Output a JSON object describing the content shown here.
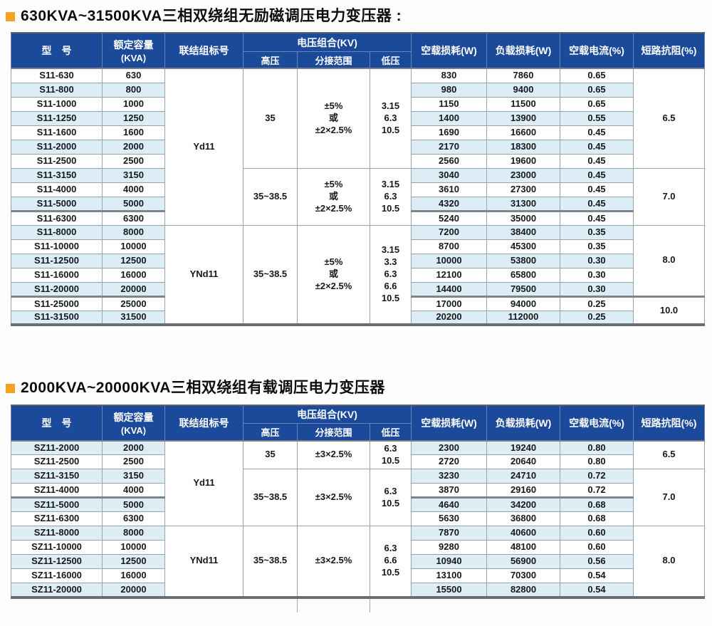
{
  "colors": {
    "header_bg": "#1b4a9b",
    "alt_row_bg": "#dcedf6",
    "bullet_accent": "#f5a21e",
    "grid_border": "#99a2aa",
    "thick_border": "#7d868d"
  },
  "headers": {
    "model": "型　号",
    "capacity_l1": "额定容量",
    "capacity_l2": "(KVA)",
    "connection": "联结组标号",
    "voltage_combo": "电压组合(KV)",
    "hv": "高压",
    "tap": "分接范围",
    "lv": "低压",
    "noload_loss": "空载损耗(W)",
    "load_loss": "负载损耗(W)",
    "noload_current": "空载电流(%)",
    "impedance": "短路抗阻(%)"
  },
  "sections": [
    {
      "title": "630KVA~31500KVA三相双绕组无励磁调压电力变压器 :",
      "table": {
        "shade_offset": 1,
        "thick_above": [
          10,
          16
        ],
        "rows": [
          {
            "model": "S11-630",
            "kva": "630",
            "no_load_loss": "830",
            "load_loss": "7860",
            "no_load_current": "0.65"
          },
          {
            "model": "S11-800",
            "kva": "800",
            "no_load_loss": "980",
            "load_loss": "9400",
            "no_load_current": "0.65"
          },
          {
            "model": "S11-1000",
            "kva": "1000",
            "no_load_loss": "1150",
            "load_loss": "11500",
            "no_load_current": "0.65"
          },
          {
            "model": "S11-1250",
            "kva": "1250",
            "no_load_loss": "1400",
            "load_loss": "13900",
            "no_load_current": "0.55"
          },
          {
            "model": "S11-1600",
            "kva": "1600",
            "no_load_loss": "1690",
            "load_loss": "16600",
            "no_load_current": "0.45"
          },
          {
            "model": "S11-2000",
            "kva": "2000",
            "no_load_loss": "2170",
            "load_loss": "18300",
            "no_load_current": "0.45"
          },
          {
            "model": "S11-2500",
            "kva": "2500",
            "no_load_loss": "2560",
            "load_loss": "19600",
            "no_load_current": "0.45"
          },
          {
            "model": "S11-3150",
            "kva": "3150",
            "no_load_loss": "3040",
            "load_loss": "23000",
            "no_load_current": "0.45"
          },
          {
            "model": "S11-4000",
            "kva": "4000",
            "no_load_loss": "3610",
            "load_loss": "27300",
            "no_load_current": "0.45"
          },
          {
            "model": "S11-5000",
            "kva": "5000",
            "no_load_loss": "4320",
            "load_loss": "31300",
            "no_load_current": "0.45"
          },
          {
            "model": "S11-6300",
            "kva": "6300",
            "no_load_loss": "5240",
            "load_loss": "35000",
            "no_load_current": "0.45"
          },
          {
            "model": "S11-8000",
            "kva": "8000",
            "no_load_loss": "7200",
            "load_loss": "38400",
            "no_load_current": "0.35"
          },
          {
            "model": "S11-10000",
            "kva": "10000",
            "no_load_loss": "8700",
            "load_loss": "45300",
            "no_load_current": "0.35"
          },
          {
            "model": "S11-12500",
            "kva": "12500",
            "no_load_loss": "10000",
            "load_loss": "53800",
            "no_load_current": "0.30"
          },
          {
            "model": "S11-16000",
            "kva": "16000",
            "no_load_loss": "12100",
            "load_loss": "65800",
            "no_load_current": "0.30"
          },
          {
            "model": "S11-20000",
            "kva": "20000",
            "no_load_loss": "14400",
            "load_loss": "79500",
            "no_load_current": "0.30"
          },
          {
            "model": "S11-25000",
            "kva": "25000",
            "no_load_loss": "17000",
            "load_loss": "94000",
            "no_load_current": "0.25"
          },
          {
            "model": "S11-31500",
            "kva": "31500",
            "no_load_loss": "20200",
            "load_loss": "112000",
            "no_load_current": "0.25"
          }
        ],
        "merged": {
          "connection": [
            {
              "at": 0,
              "span": 11,
              "lines": [
                "Yd11"
              ]
            },
            {
              "at": 11,
              "span": 7,
              "lines": [
                "YNd11"
              ]
            }
          ],
          "hv": [
            {
              "at": 0,
              "span": 7,
              "lines": [
                "35"
              ]
            },
            {
              "at": 7,
              "span": 4,
              "lines": [
                "35~38.5"
              ]
            },
            {
              "at": 11,
              "span": 7,
              "lines": [
                "35~38.5"
              ]
            }
          ],
          "tap": [
            {
              "at": 0,
              "span": 7,
              "lines": [
                "±5%",
                "或",
                "±2×2.5%"
              ]
            },
            {
              "at": 7,
              "span": 4,
              "lines": [
                "±5%",
                "或",
                "±2×2.5%"
              ]
            },
            {
              "at": 11,
              "span": 7,
              "lines": [
                "±5%",
                "或",
                "±2×2.5%"
              ]
            }
          ],
          "lv": [
            {
              "at": 0,
              "span": 7,
              "lines": [
                "3.15",
                "6.3",
                "10.5"
              ]
            },
            {
              "at": 7,
              "span": 4,
              "lines": [
                "3.15",
                "6.3",
                "10.5"
              ]
            },
            {
              "at": 11,
              "span": 7,
              "lines": [
                "3.15",
                "3.3",
                "6.3",
                "6.6",
                "10.5"
              ]
            }
          ],
          "impedance": [
            {
              "at": 0,
              "span": 7,
              "lines": [
                "6.5"
              ]
            },
            {
              "at": 7,
              "span": 4,
              "lines": [
                "7.0"
              ]
            },
            {
              "at": 11,
              "span": 5,
              "lines": [
                "8.0"
              ]
            },
            {
              "at": 16,
              "span": 2,
              "lines": [
                "10.0"
              ]
            }
          ]
        }
      }
    },
    {
      "title": "2000KVA~20000KVA三相双绕组有载调压电力变压器",
      "table": {
        "shade_offset": 0,
        "thick_above": [
          4
        ],
        "rows": [
          {
            "model": "SZ11-2000",
            "kva": "2000",
            "no_load_loss": "2300",
            "load_loss": "19240",
            "no_load_current": "0.80"
          },
          {
            "model": "SZ11-2500",
            "kva": "2500",
            "no_load_loss": "2720",
            "load_loss": "20640",
            "no_load_current": "0.80"
          },
          {
            "model": "SZ11-3150",
            "kva": "3150",
            "no_load_loss": "3230",
            "load_loss": "24710",
            "no_load_current": "0.72"
          },
          {
            "model": "SZ11-4000",
            "kva": "4000",
            "no_load_loss": "3870",
            "load_loss": "29160",
            "no_load_current": "0.72"
          },
          {
            "model": "SZ11-5000",
            "kva": "5000",
            "no_load_loss": "4640",
            "load_loss": "34200",
            "no_load_current": "0.68"
          },
          {
            "model": "SZ11-6300",
            "kva": "6300",
            "no_load_loss": "5630",
            "load_loss": "36800",
            "no_load_current": "0.68"
          },
          {
            "model": "SZ11-8000",
            "kva": "8000",
            "no_load_loss": "7870",
            "load_loss": "40600",
            "no_load_current": "0.60"
          },
          {
            "model": "SZ11-10000",
            "kva": "10000",
            "no_load_loss": "9280",
            "load_loss": "48100",
            "no_load_current": "0.60"
          },
          {
            "model": "SZ11-12500",
            "kva": "12500",
            "no_load_loss": "10940",
            "load_loss": "56900",
            "no_load_current": "0.56"
          },
          {
            "model": "SZ11-16000",
            "kva": "16000",
            "no_load_loss": "13100",
            "load_loss": "70300",
            "no_load_current": "0.54"
          },
          {
            "model": "SZ11-20000",
            "kva": "20000",
            "no_load_loss": "15500",
            "load_loss": "82800",
            "no_load_current": "0.54"
          }
        ],
        "merged": {
          "connection": [
            {
              "at": 0,
              "span": 6,
              "lines": [
                "Yd11"
              ]
            },
            {
              "at": 6,
              "span": 5,
              "lines": [
                "YNd11"
              ]
            }
          ],
          "hv": [
            {
              "at": 0,
              "span": 2,
              "lines": [
                "35"
              ]
            },
            {
              "at": 2,
              "span": 4,
              "lines": [
                "35~38.5"
              ]
            },
            {
              "at": 6,
              "span": 5,
              "lines": [
                "35~38.5"
              ]
            }
          ],
          "tap": [
            {
              "at": 0,
              "span": 2,
              "lines": [
                "±3×2.5%"
              ]
            },
            {
              "at": 2,
              "span": 4,
              "lines": [
                "±3×2.5%"
              ]
            },
            {
              "at": 6,
              "span": 5,
              "lines": [
                "±3×2.5%"
              ]
            }
          ],
          "lv": [
            {
              "at": 0,
              "span": 2,
              "lines": [
                "6.3",
                "10.5"
              ]
            },
            {
              "at": 2,
              "span": 4,
              "lines": [
                "6.3",
                "10.5"
              ]
            },
            {
              "at": 6,
              "span": 5,
              "lines": [
                "6.3",
                "6.6",
                "10.5"
              ]
            }
          ],
          "impedance": [
            {
              "at": 0,
              "span": 2,
              "lines": [
                "6.5"
              ]
            },
            {
              "at": 2,
              "span": 4,
              "lines": [
                "7.0"
              ]
            },
            {
              "at": 6,
              "span": 5,
              "lines": [
                "8.0"
              ]
            }
          ]
        }
      }
    }
  ]
}
